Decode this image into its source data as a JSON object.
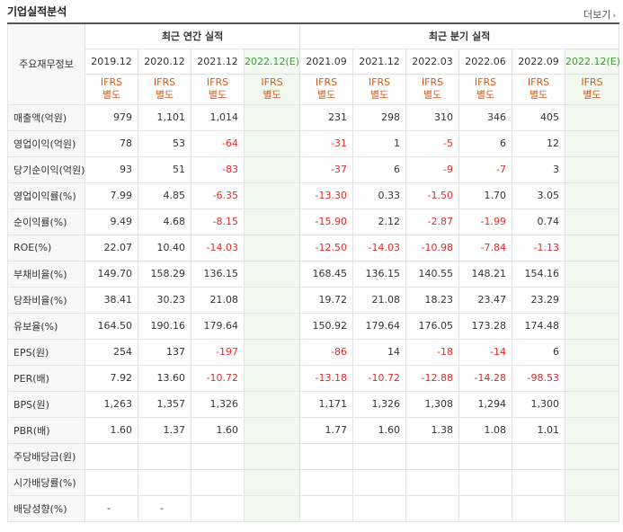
{
  "title": "기업실적분석",
  "more_label": "더보기",
  "corner_label": "주요재무정보",
  "annual_header": "최근 연간 실적",
  "quarter_header": "최근 분기 실적",
  "annual_periods": [
    "2019.12",
    "2020.12",
    "2021.12",
    "2022.12(E)"
  ],
  "quarter_periods": [
    "2021.09",
    "2021.12",
    "2022.03",
    "2022.06",
    "2022.09",
    "2022.12(E)"
  ],
  "ifrs_line1": "IFRS",
  "ifrs_line2": "별도",
  "rows": [
    {
      "label": "매출액(억원)",
      "values": [
        "979",
        "1,101",
        "1,014",
        "",
        "231",
        "298",
        "310",
        "346",
        "405",
        ""
      ]
    },
    {
      "label": "영업이익(억원)",
      "values": [
        "78",
        "53",
        "-64",
        "",
        "-31",
        "1",
        "-5",
        "6",
        "12",
        ""
      ]
    },
    {
      "label": "당기순이익(억원)",
      "values": [
        "93",
        "51",
        "-83",
        "",
        "-37",
        "6",
        "-9",
        "-7",
        "3",
        ""
      ]
    },
    {
      "label": "영업이익률(%)",
      "values": [
        "7.99",
        "4.85",
        "-6.35",
        "",
        "-13.30",
        "0.33",
        "-1.50",
        "1.70",
        "3.05",
        ""
      ]
    },
    {
      "label": "순이익률(%)",
      "values": [
        "9.49",
        "4.68",
        "-8.15",
        "",
        "-15.90",
        "2.12",
        "-2.87",
        "-1.99",
        "0.74",
        ""
      ]
    },
    {
      "label": "ROE(%)",
      "values": [
        "22.07",
        "10.40",
        "-14.03",
        "",
        "-12.50",
        "-14.03",
        "-10.98",
        "-7.84",
        "-1.13",
        ""
      ]
    },
    {
      "label": "부채비율(%)",
      "values": [
        "149.70",
        "158.29",
        "136.15",
        "",
        "168.45",
        "136.15",
        "140.55",
        "148.21",
        "154.16",
        ""
      ]
    },
    {
      "label": "당좌비율(%)",
      "values": [
        "38.41",
        "30.23",
        "21.08",
        "",
        "19.72",
        "21.08",
        "18.23",
        "23.47",
        "23.29",
        ""
      ]
    },
    {
      "label": "유보율(%)",
      "values": [
        "164.50",
        "190.16",
        "179.64",
        "",
        "150.92",
        "179.64",
        "176.05",
        "173.28",
        "174.48",
        ""
      ]
    },
    {
      "label": "EPS(원)",
      "values": [
        "254",
        "137",
        "-197",
        "",
        "-86",
        "14",
        "-18",
        "-14",
        "6",
        ""
      ]
    },
    {
      "label": "PER(배)",
      "values": [
        "7.92",
        "13.60",
        "-10.72",
        "",
        "-13.18",
        "-10.72",
        "-12.88",
        "-14.28",
        "-98.53",
        ""
      ]
    },
    {
      "label": "BPS(원)",
      "values": [
        "1,263",
        "1,357",
        "1,326",
        "",
        "1,171",
        "1,326",
        "1,308",
        "1,294",
        "1,300",
        ""
      ]
    },
    {
      "label": "PBR(배)",
      "values": [
        "1.60",
        "1.37",
        "1.60",
        "",
        "1.77",
        "1.60",
        "1.38",
        "1.08",
        "1.01",
        ""
      ]
    },
    {
      "label": "주당배당금(원)",
      "values": [
        "",
        "",
        "",
        "",
        "",
        "",
        "",
        "",
        "",
        ""
      ]
    },
    {
      "label": "시가배당률(%)",
      "values": [
        "",
        "",
        "",
        "",
        "",
        "",
        "",
        "",
        "",
        ""
      ]
    },
    {
      "label": "배당성향(%)",
      "values": [
        "-",
        "-",
        "",
        "",
        "",
        "",
        "",
        "",
        "",
        ""
      ]
    }
  ],
  "colors": {
    "negative": "#e02b2b",
    "ifrs": "#d95a1a",
    "estimate_bg": "#f1f8ee"
  }
}
